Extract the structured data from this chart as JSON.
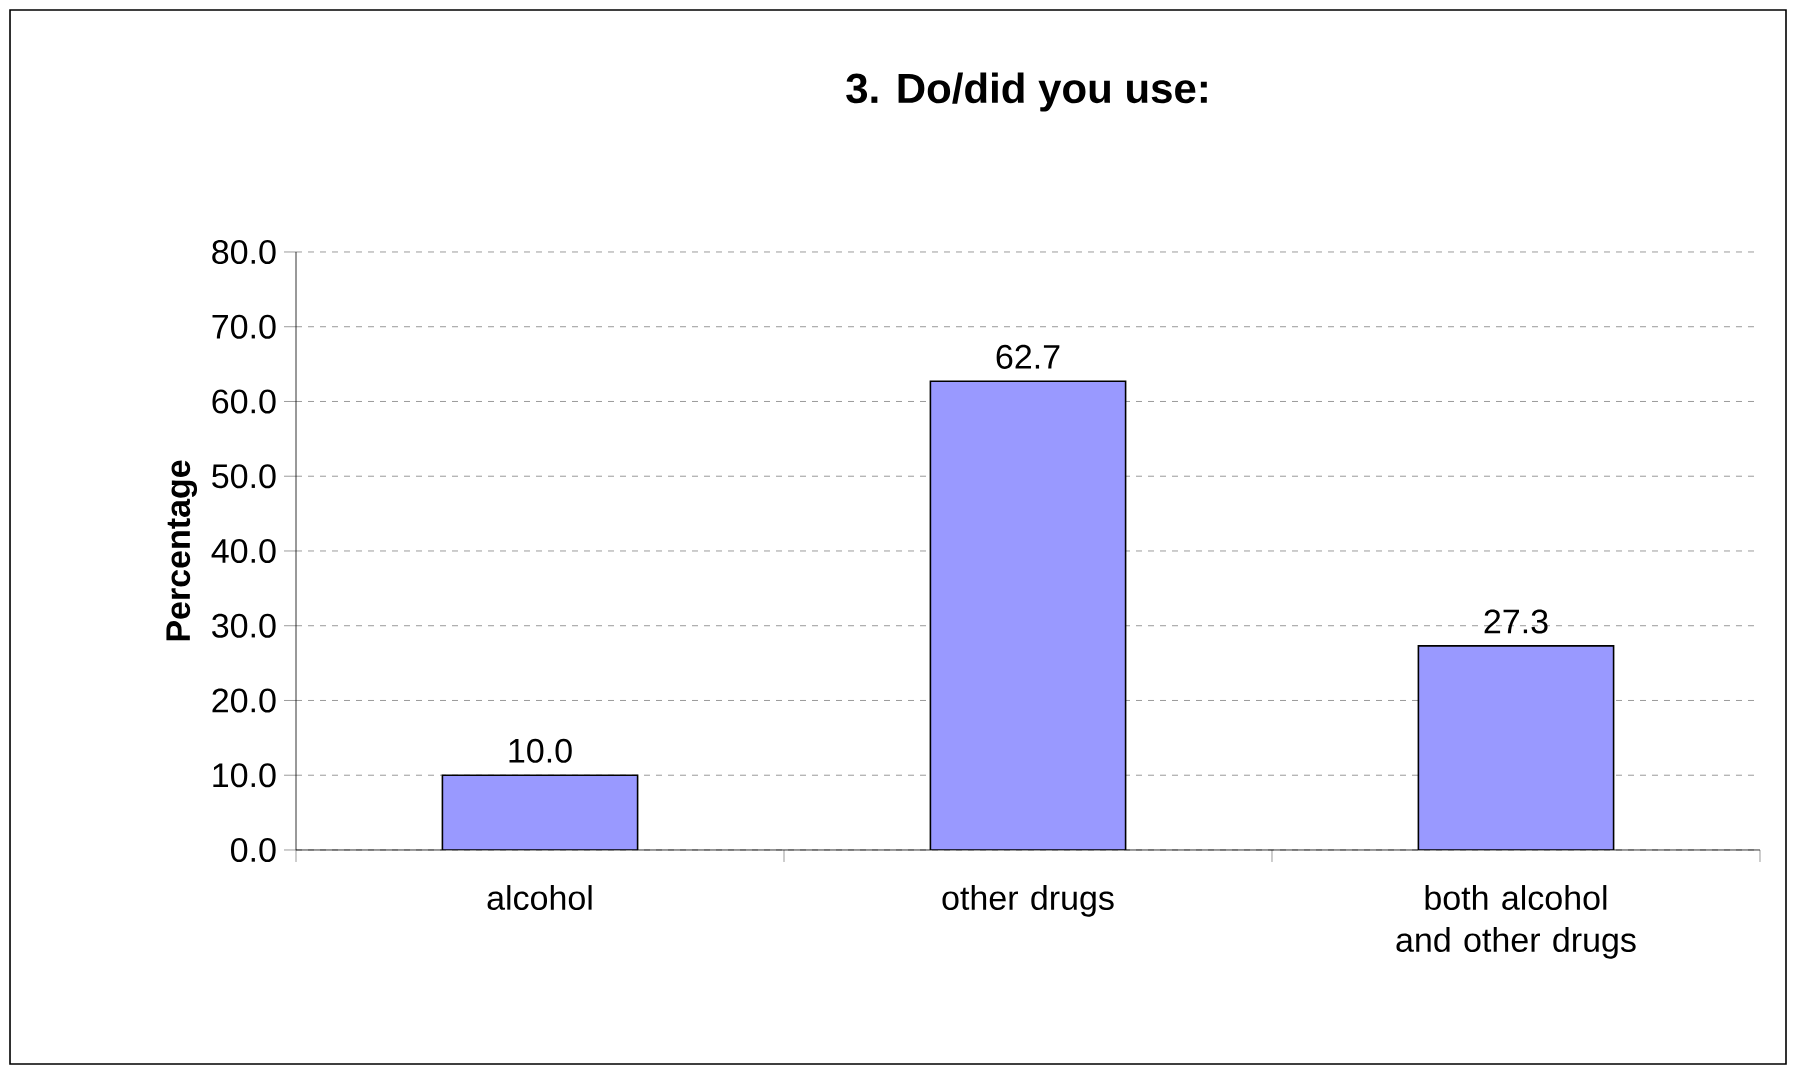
{
  "chart_data": {
    "type": "bar",
    "title": "3. Do/did you use:",
    "ylabel": "Percentage",
    "categories": [
      "alcohol",
      "other drugs",
      "both alcohol and other drugs"
    ],
    "values": [
      10.0,
      62.7,
      27.3
    ],
    "color": "#9999ff",
    "value_labels": [
      "10.0",
      "62.7",
      "27.3"
    ],
    "ylim": [
      0,
      80
    ],
    "yticks": [
      {
        "value": 0,
        "label": "0.0"
      },
      {
        "value": 10,
        "label": "10.0"
      },
      {
        "value": 20,
        "label": "20.0"
      },
      {
        "value": 30,
        "label": "30.0"
      },
      {
        "value": 40,
        "label": "40.0"
      },
      {
        "value": 50,
        "label": "50.0"
      },
      {
        "value": 60,
        "label": "60.0"
      },
      {
        "value": 70,
        "label": "70.0"
      },
      {
        "value": 80,
        "label": "80.0"
      }
    ],
    "grid": "y"
  }
}
